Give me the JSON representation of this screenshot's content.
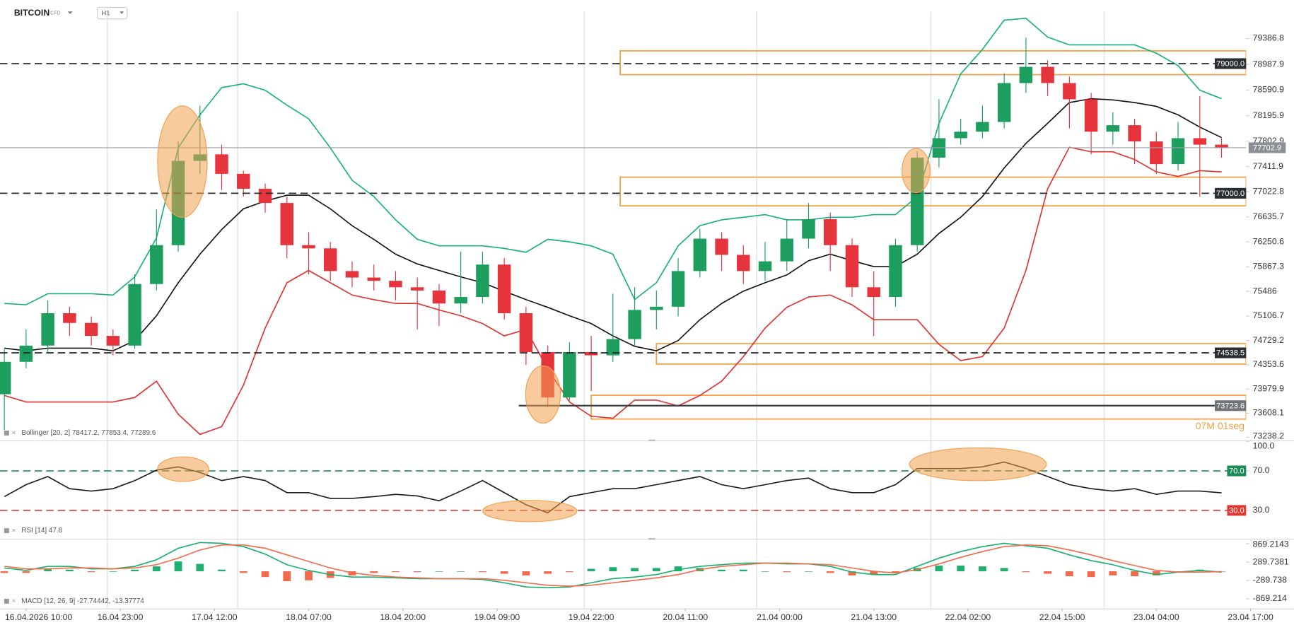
{
  "header": {
    "symbol": "BITCOIN",
    "instrument": "CFD",
    "timeframe": "H1",
    "countdown": "07M 01seg"
  },
  "chart_data": [
    {
      "type": "candlestick",
      "indicator_label": "Bollinger [20, 2] 78417.2, 77853.4, 77289.6",
      "x": [
        -3,
        0,
        3,
        6,
        9,
        12,
        15,
        18,
        21,
        24,
        27,
        30,
        33,
        36,
        39,
        42,
        45,
        48,
        51,
        54,
        57,
        60,
        63,
        66,
        69,
        72,
        75,
        78,
        81,
        84,
        87,
        90,
        93,
        96,
        99,
        102,
        105,
        108,
        111,
        114,
        117,
        120,
        123,
        126,
        129,
        132,
        135,
        138,
        141,
        144,
        147,
        150,
        153,
        156,
        159,
        162,
        165
      ],
      "xlim": [
        -3.6,
        175
      ],
      "xticks": [
        {
          "value": 0,
          "label": "16.04.2026 10:00"
        },
        {
          "value": 13,
          "label": "16.04 23:00"
        },
        {
          "value": 26,
          "label": "17.04 12:00"
        },
        {
          "value": 39,
          "label": "18.04 07:00"
        },
        {
          "value": 52,
          "label": "18.04 20:00"
        },
        {
          "value": 65,
          "label": "19.04 09:00"
        },
        {
          "value": 78,
          "label": "19.04 22:00"
        },
        {
          "value": 91,
          "label": "20.04 11:00"
        },
        {
          "value": 104,
          "label": "21.04 00:00"
        },
        {
          "value": 117,
          "label": "21.04 13:00"
        },
        {
          "value": 130,
          "label": "22.04 02:00"
        },
        {
          "value": 143,
          "label": "22.04 15:00"
        },
        {
          "value": 156,
          "label": "23.04 04:00"
        },
        {
          "value": 169,
          "label": "23.04 17:00"
        }
      ],
      "ylim": [
        73187,
        79855
      ],
      "yticks": [
        79386.8,
        78987.9,
        78590.9,
        78195.9,
        77802.9,
        77411.9,
        77022.8,
        76635.7,
        76250.6,
        75867.3,
        75486,
        75106.7,
        74729.2,
        74353.6,
        73979.9,
        73608.1,
        73238.2
      ],
      "up_color": "#1e9e5e",
      "down_color": "#e5343c",
      "open": [
        73900,
        74400,
        74650,
        75150,
        75000,
        74800,
        74650,
        75600,
        76200,
        77500,
        77600,
        77300,
        77070,
        76850,
        76200,
        76150,
        75800,
        75700,
        75650,
        75550,
        75500,
        75300,
        75400,
        75900,
        75150,
        74550,
        73850,
        74550,
        74500,
        74750,
        75200,
        75250,
        75800,
        76300,
        76050,
        75800,
        75950,
        76300,
        76600,
        76200,
        75550,
        75400,
        76200,
        77550,
        77850,
        77950,
        78100,
        78700,
        78950,
        78700,
        78450,
        77950,
        78050,
        77800,
        77450,
        77850,
        77750
      ],
      "high": [
        74600,
        74900,
        75350,
        75250,
        75100,
        74900,
        75750,
        76750,
        77800,
        78350,
        77750,
        77350,
        77150,
        76950,
        76400,
        76250,
        75950,
        75900,
        75800,
        75700,
        75600,
        76100,
        76100,
        76000,
        75250,
        74650,
        74700,
        74800,
        75450,
        75550,
        75500,
        76000,
        76450,
        76400,
        76200,
        76250,
        76600,
        76850,
        76700,
        76300,
        75800,
        76300,
        77650,
        78450,
        78150,
        78350,
        78850,
        79400,
        79050,
        78800,
        78550,
        78250,
        78150,
        77950,
        78100,
        78500,
        77850
      ],
      "low": [
        73350,
        74300,
        74550,
        74800,
        74650,
        74500,
        74600,
        75500,
        76100,
        77300,
        77050,
        76950,
        76700,
        76000,
        75750,
        75650,
        75550,
        75500,
        75350,
        74900,
        74950,
        75150,
        75300,
        75050,
        74350,
        73700,
        73800,
        73950,
        74400,
        74650,
        74900,
        75100,
        75700,
        75800,
        75600,
        75650,
        75800,
        76150,
        75800,
        75400,
        74800,
        75250,
        76100,
        77400,
        77750,
        77850,
        78000,
        78550,
        78500,
        78000,
        77600,
        77750,
        77450,
        77300,
        77350,
        76950,
        77550
      ],
      "close": [
        74400,
        74650,
        75150,
        75000,
        74800,
        74650,
        75600,
        76200,
        77500,
        77600,
        77300,
        77070,
        76850,
        76200,
        76150,
        75800,
        75700,
        75650,
        75550,
        75500,
        75300,
        75400,
        75900,
        75150,
        74550,
        73850,
        74550,
        74500,
        74750,
        75200,
        75250,
        75800,
        76300,
        76050,
        75800,
        75950,
        76300,
        76600,
        76200,
        75550,
        75400,
        76200,
        77550,
        77850,
        77950,
        78100,
        78700,
        78950,
        78700,
        78450,
        77950,
        78050,
        77800,
        77450,
        77850,
        77750,
        77702.9
      ],
      "series": [
        {
          "color": "#17b07a",
          "values": [
            75300,
            75280,
            75450,
            75450,
            75450,
            75430,
            75710,
            76310,
            77700,
            78210,
            78630,
            78690,
            78590,
            78360,
            78150,
            77700,
            77200,
            76950,
            76590,
            76290,
            76190,
            76190,
            76190,
            76150,
            76090,
            76290,
            76250,
            76190,
            76060,
            75360,
            75620,
            76190,
            76500,
            76590,
            76630,
            76670,
            76590,
            76590,
            76630,
            76630,
            76670,
            76670,
            76950,
            78080,
            78840,
            79220,
            79670,
            79700,
            79410,
            79290,
            79290,
            79290,
            79290,
            79160,
            78970,
            78590,
            78460
          ]
        },
        {
          "color": "#111111",
          "values": [
            74610,
            74570,
            74610,
            74610,
            74610,
            74570,
            74730,
            75110,
            75620,
            76060,
            76440,
            76760,
            76880,
            76970,
            76970,
            76760,
            76500,
            76290,
            76060,
            75910,
            75810,
            75710,
            75620,
            75490,
            75360,
            75240,
            75110,
            74990,
            74800,
            74640,
            74570,
            74730,
            75050,
            75300,
            75490,
            75620,
            75740,
            75960,
            76060,
            75960,
            75870,
            75870,
            76060,
            76380,
            76630,
            76950,
            77390,
            77770,
            78080,
            78400,
            78460,
            78440,
            78400,
            78340,
            78210,
            78020,
            77860
          ]
        },
        {
          "color": "#e0302f",
          "values": [
            73880,
            73780,
            73780,
            73780,
            73780,
            73780,
            73850,
            74100,
            73590,
            73280,
            73400,
            74040,
            74920,
            75620,
            75810,
            75620,
            75430,
            75360,
            75300,
            75300,
            75200,
            75110,
            74990,
            74800,
            74900,
            74290,
            73780,
            73560,
            73530,
            73810,
            73810,
            73720,
            73880,
            74100,
            74480,
            74920,
            75240,
            75400,
            75430,
            75280,
            75050,
            75050,
            75050,
            74670,
            74420,
            74480,
            74920,
            75810,
            77070,
            77710,
            77640,
            77640,
            77520,
            77330,
            77260,
            77350,
            77330
          ]
        }
      ],
      "zone_color": "#f5a044",
      "zones": [
        {
          "from": 82,
          "low": 78830,
          "high": 79197
        },
        {
          "from": 82,
          "low": 76806,
          "high": 77249
        },
        {
          "from": 87,
          "low": 74365,
          "high": 74681
        },
        {
          "from": 78,
          "low": 73517,
          "high": 73884
        }
      ],
      "levels": [
        {
          "value": 79000,
          "label": "79000.0",
          "style": "dashed",
          "color": "#2a2e33"
        },
        {
          "value": 77000,
          "label": "77000.0",
          "style": "dashed",
          "color": "#2a2e33"
        },
        {
          "value": 74538.5,
          "label": "74538.5",
          "style": "dashed",
          "color": "#2a2e33"
        },
        {
          "value": 73723.6,
          "label": "73723.6",
          "style": "solid",
          "color": "#3a3d40",
          "from": 68,
          "tag_color": "#6f7378"
        }
      ],
      "last_price": {
        "value": 77702.9,
        "label": "77702.9",
        "color": "#9aa0a6",
        "tag_color": "#8a9096"
      }
    },
    {
      "type": "line",
      "indicator_label": "RSI [14] 47.8",
      "ylim": [
        2,
        100
      ],
      "yticks": [
        {
          "value": 100,
          "label": "100.0"
        },
        {
          "value": 70,
          "label": "70.0"
        },
        {
          "value": 30,
          "label": "30.0"
        }
      ],
      "levels": [
        {
          "value": 70,
          "label": "70.0",
          "color": "#1b8a57"
        },
        {
          "value": 30,
          "label": "30.0",
          "color": "#e03a35"
        }
      ],
      "series": [
        {
          "color": "#1a1a1a",
          "values": [
            43.9,
            56.1,
            64.3,
            52,
            49.6,
            52,
            60.2,
            70.8,
            74.1,
            68.4,
            60.2,
            64.3,
            60.2,
            48,
            48,
            42.2,
            42.2,
            43.9,
            46.3,
            44.7,
            39.8,
            49.6,
            60.2,
            48,
            35.7,
            27.6,
            43.9,
            48,
            52,
            52,
            56.1,
            60.2,
            64.3,
            56.1,
            52,
            56.1,
            60.2,
            62.7,
            52,
            48,
            48,
            56.1,
            72.4,
            72.4,
            72.4,
            74.1,
            79,
            72.4,
            64.3,
            56.1,
            52,
            49.6,
            52,
            46.3,
            49.6,
            49.6,
            47.8
          ]
        }
      ]
    },
    {
      "type": "macd",
      "indicator_label": "MACD [12, 26, 9] -27.74442, -13.37774",
      "ylim": [
        -1180,
        999
      ],
      "yticks": [
        869.2143,
        289.7381,
        -289.738,
        -869.214
      ],
      "hist_up": "#1fb070",
      "hist_down": "#f06a4b",
      "histogram": [
        -52,
        -52,
        78,
        52,
        -26,
        0,
        52,
        156,
        312,
        234,
        52,
        -52,
        -182,
        -312,
        -286,
        -208,
        -130,
        -52,
        -26,
        -26,
        0,
        0,
        -26,
        -78,
        -130,
        -78,
        -26,
        78,
        130,
        104,
        104,
        156,
        104,
        52,
        52,
        0,
        -26,
        0,
        -52,
        -130,
        -104,
        -52,
        104,
        182,
        182,
        156,
        104,
        -26,
        -78,
        -156,
        -182,
        -130,
        -156,
        -130,
        0,
        52,
        -14.37
      ],
      "series": [
        {
          "color": "#16b06d",
          "values": [
            104,
            26,
            156,
            156,
            78,
            78,
            156,
            364,
            728,
            910,
            884,
            780,
            546,
            208,
            26,
            -104,
            -182,
            -182,
            -208,
            -234,
            -234,
            -234,
            -260,
            -364,
            -494,
            -520,
            -494,
            -364,
            -234,
            -182,
            -104,
            52,
            156,
            208,
            260,
            260,
            234,
            234,
            156,
            -26,
            -104,
            -104,
            156,
            416,
            624,
            780,
            884,
            806,
            728,
            520,
            338,
            208,
            26,
            -104,
            -26,
            26,
            -27.74442
          ]
        },
        {
          "color": "#f06a4b",
          "values": [
            156,
            78,
            78,
            104,
            104,
            78,
            104,
            208,
            416,
            676,
            832,
            832,
            728,
            520,
            312,
            104,
            -52,
            -130,
            -182,
            -208,
            -234,
            -234,
            -234,
            -286,
            -364,
            -442,
            -468,
            -442,
            -364,
            -286,
            -208,
            -104,
            52,
            156,
            208,
            260,
            260,
            234,
            208,
            104,
            0,
            -52,
            52,
            234,
            442,
            624,
            780,
            832,
            806,
            676,
            520,
            338,
            182,
            26,
            -26,
            -26,
            -13.37774
          ]
        }
      ]
    }
  ]
}
